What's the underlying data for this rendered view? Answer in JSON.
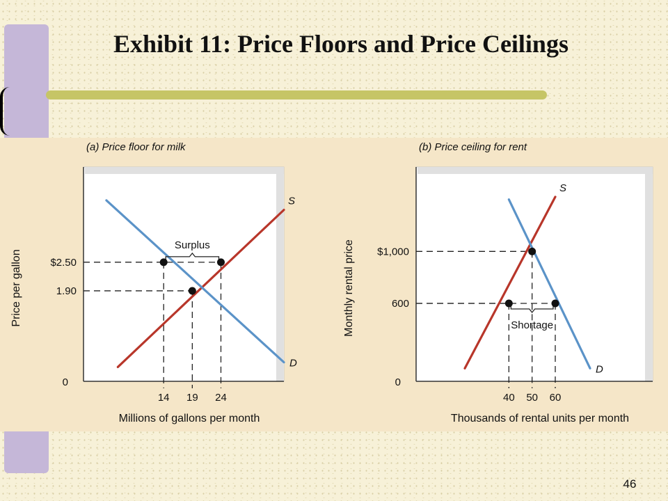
{
  "title": "Exhibit 11: Price Floors and Price Ceilings",
  "page_number": "46",
  "colors": {
    "supply": "#b8362a",
    "demand": "#5b93c8",
    "plot_background": "#ffffff",
    "panel_background": "#f5e6c8",
    "sidebar": "#c5b7d8",
    "title_rule": "#c6c566"
  },
  "chart_data": [
    {
      "type": "line",
      "title": "(a) Price floor for milk",
      "xlabel": "Millions of gallons per month",
      "ylabel": "Price per gallon",
      "xlim": [
        0,
        35
      ],
      "ylim": [
        0,
        4.5
      ],
      "x_ticks": [
        {
          "value": 14,
          "label": "14"
        },
        {
          "value": 19,
          "label": "19"
        },
        {
          "value": 24,
          "label": "24"
        }
      ],
      "y_ticks": [
        {
          "value": 2.5,
          "label": "$2.50"
        },
        {
          "value": 1.9,
          "label": "1.90"
        }
      ],
      "origin_label": "0",
      "series": [
        {
          "name": "S",
          "role": "supply",
          "points": [
            [
              6,
              0.3
            ],
            [
              35,
              3.6
            ]
          ]
        },
        {
          "name": "D",
          "role": "demand",
          "points": [
            [
              4,
              3.8
            ],
            [
              35,
              0.4
            ]
          ]
        }
      ],
      "points": [
        {
          "x": 14,
          "y": 2.5
        },
        {
          "x": 24,
          "y": 2.5
        },
        {
          "x": 19,
          "y": 1.9
        }
      ],
      "guides": [
        {
          "x": 14,
          "y": 2.5
        },
        {
          "x": 24,
          "y": 2.5
        },
        {
          "x": 19,
          "y": 1.9
        }
      ],
      "annotation": {
        "label": "Surplus",
        "from": 14,
        "to": 24,
        "y": 2.5
      }
    },
    {
      "type": "line",
      "title": "(b) Price ceiling for rent",
      "xlabel": "Thousands of rental units per month",
      "ylabel": "Monthly rental price",
      "xlim": [
        0,
        102
      ],
      "ylim": [
        0,
        1650
      ],
      "x_ticks": [
        {
          "value": 40,
          "label": "40"
        },
        {
          "value": 50,
          "label": "50"
        },
        {
          "value": 60,
          "label": "60"
        }
      ],
      "y_ticks": [
        {
          "value": 1000,
          "label": "$1,000"
        },
        {
          "value": 600,
          "label": "600"
        }
      ],
      "origin_label": "0",
      "series": [
        {
          "name": "S",
          "role": "supply",
          "points": [
            [
              21,
              100
            ],
            [
              60,
              1420
            ]
          ]
        },
        {
          "name": "D",
          "role": "demand",
          "points": [
            [
              40,
              1400
            ],
            [
              75,
              100
            ]
          ]
        }
      ],
      "points": [
        {
          "x": 50,
          "y": 1000
        },
        {
          "x": 40,
          "y": 600
        },
        {
          "x": 60,
          "y": 600
        }
      ],
      "guides": [
        {
          "x": 50,
          "y": 1000
        },
        {
          "x": 40,
          "y": 600
        },
        {
          "x": 60,
          "y": 600
        }
      ],
      "annotation": {
        "label": "Shortage",
        "from": 40,
        "to": 60,
        "y": 600
      }
    }
  ]
}
